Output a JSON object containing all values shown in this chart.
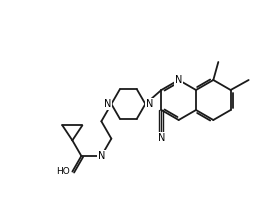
{
  "background_color": "#ffffff",
  "line_color": "#1a1a1a",
  "line_width": 1.3,
  "atoms": {
    "N_label": "N",
    "HO_label": "HO",
    "NH_label": "N",
    "CN_label": "N"
  }
}
